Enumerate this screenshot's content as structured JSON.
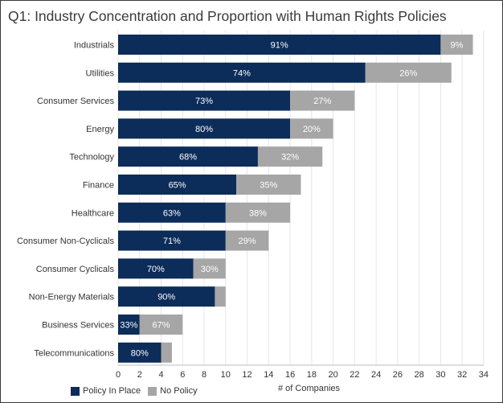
{
  "chart_data": {
    "type": "bar",
    "orientation": "horizontal",
    "stacked": true,
    "title": "Q1: Industry Concentration and Proportion with Human Rights Policies",
    "xlabel": "# of Companies",
    "ylabel": "",
    "xlim": [
      0,
      34
    ],
    "xticks": [
      0,
      2,
      4,
      6,
      8,
      10,
      12,
      14,
      16,
      18,
      20,
      22,
      24,
      26,
      28,
      30,
      32,
      34
    ],
    "grid": true,
    "legend_position": "bottom-left",
    "colors": {
      "policy": "#0c2c5a",
      "no_policy": "#a6a6a6"
    },
    "categories": [
      "Industrials",
      "Utilities",
      "Consumer Services",
      "Energy",
      "Technology",
      "Finance",
      "Healthcare",
      "Consumer Non-Cyclicals",
      "Consumer Cyclicals",
      "Non-Energy Materials",
      "Business Services",
      "Telecommunications"
    ],
    "series": [
      {
        "name": "Policy In Place",
        "values": [
          30,
          23,
          16,
          16,
          13,
          11,
          10,
          10,
          7,
          9,
          2,
          4
        ],
        "labels": [
          "91%",
          "74%",
          "73%",
          "80%",
          "68%",
          "65%",
          "63%",
          "71%",
          "70%",
          "90%",
          "33%",
          "80%"
        ]
      },
      {
        "name": "No Policy",
        "values": [
          3,
          8,
          6,
          4,
          6,
          6,
          6,
          4,
          3,
          1,
          4,
          1
        ],
        "labels": [
          "9%",
          "26%",
          "27%",
          "20%",
          "32%",
          "35%",
          "38%",
          "29%",
          "30%",
          "",
          "67%",
          ""
        ]
      }
    ]
  }
}
